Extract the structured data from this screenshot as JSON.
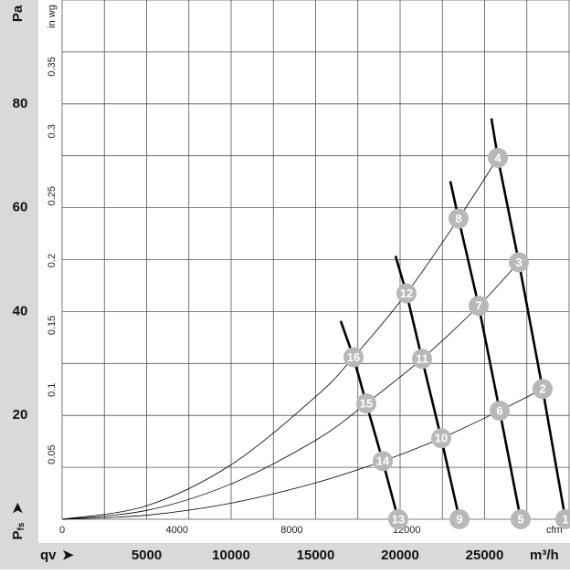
{
  "chart_data": {
    "type": "line",
    "y_axis_label": "Pa",
    "y_axis_symbol": "P",
    "y_axis_symbol_sub": "fs",
    "x_axis_symbol": "qv",
    "x_unit": "m³/h",
    "x2_unit": "cfm",
    "y2_unit": "in wg",
    "xlim": [
      0,
      30000
    ],
    "ylim": [
      0,
      100
    ],
    "xticks": [
      5000,
      10000,
      15000,
      20000,
      25000
    ],
    "yticks": [
      20,
      40,
      60,
      80
    ],
    "xgrid": [
      0,
      2500,
      5000,
      7500,
      10000,
      12500,
      15000,
      17500,
      20000,
      22500,
      25000,
      27500,
      30000
    ],
    "ygrid": [
      0,
      10,
      20,
      30,
      40,
      50,
      60,
      70,
      80,
      90,
      100
    ],
    "x2lim": [
      0,
      17657
    ],
    "x2ticks": [
      0,
      4000,
      8000,
      12000
    ],
    "y2lim": [
      0,
      0.4015
    ],
    "y2ticks": [
      0.05,
      0.1,
      0.15,
      0.2,
      0.25,
      0.3,
      0.35
    ],
    "series": [
      {
        "kind": "system",
        "color": "#000000",
        "x": [
          0,
          5000,
          10000,
          15000,
          18973,
          22432,
          25892,
          28432
        ],
        "values": [
          0,
          0.78,
          3.1,
          7.0,
          11.2,
          15.6,
          20.9,
          25.1
        ]
      },
      {
        "kind": "system",
        "color": "#000000",
        "x": [
          0,
          5000,
          10000,
          15000,
          18000,
          21297,
          24649,
          27027
        ],
        "values": [
          0,
          1.7,
          6.8,
          15.2,
          22.3,
          30.9,
          41.1,
          49.5
        ]
      },
      {
        "kind": "system",
        "color": "#000000",
        "x": [
          0,
          5000,
          10000,
          15000,
          17243,
          20378,
          23459,
          25784
        ],
        "values": [
          0,
          2.6,
          10.5,
          23.6,
          31.2,
          43.5,
          57.9,
          69.6
        ]
      },
      {
        "kind": "fan",
        "color": "#000000",
        "x": [
          25405,
          25784,
          27027,
          28432,
          29784
        ],
        "values": [
          77.2,
          69.6,
          49.5,
          25.1,
          0
        ]
      },
      {
        "kind": "fan",
        "color": "#000000",
        "x": [
          22973,
          23459,
          24649,
          25892,
          27135
        ],
        "values": [
          65.1,
          57.9,
          41.1,
          20.9,
          0
        ]
      },
      {
        "kind": "fan",
        "color": "#000000",
        "x": [
          19730,
          20378,
          21297,
          22432,
          23514
        ],
        "values": [
          50.7,
          43.5,
          30.9,
          15.6,
          0
        ]
      },
      {
        "kind": "fan",
        "color": "#000000",
        "x": [
          16486,
          17243,
          18000,
          18973,
          19892
        ],
        "values": [
          38.2,
          31.2,
          22.3,
          11.2,
          0
        ]
      }
    ],
    "point_color": "#b8b8b8",
    "points": [
      {
        "label": "1",
        "q": 29784,
        "p": 0
      },
      {
        "label": "2",
        "q": 28432,
        "p": 25.1
      },
      {
        "label": "3",
        "q": 27027,
        "p": 49.5
      },
      {
        "label": "4",
        "q": 25784,
        "p": 69.6
      },
      {
        "label": "5",
        "q": 27135,
        "p": 0
      },
      {
        "label": "6",
        "q": 25892,
        "p": 20.9
      },
      {
        "label": "7",
        "q": 24649,
        "p": 41.1
      },
      {
        "label": "8",
        "q": 23459,
        "p": 57.9
      },
      {
        "label": "9",
        "q": 23514,
        "p": 0
      },
      {
        "label": "10",
        "q": 22432,
        "p": 15.6
      },
      {
        "label": "11",
        "q": 21297,
        "p": 30.9
      },
      {
        "label": "12",
        "q": 20378,
        "p": 43.5
      },
      {
        "label": "13",
        "q": 19892,
        "p": 0
      },
      {
        "label": "14",
        "q": 18973,
        "p": 11.2
      },
      {
        "label": "15",
        "q": 18000,
        "p": 22.3
      },
      {
        "label": "16",
        "q": 17243,
        "p": 31.2
      }
    ]
  }
}
